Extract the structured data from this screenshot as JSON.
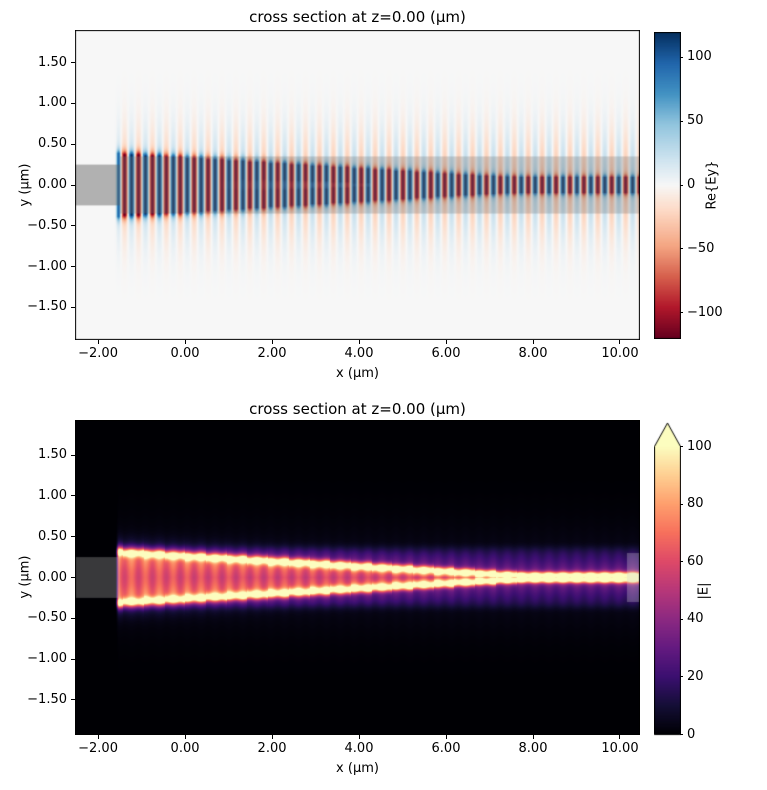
{
  "chart_data": [
    {
      "type": "heatmap",
      "title": "cross section at z=0.00 (μm)",
      "xlabel": "x (μm)",
      "ylabel": "y (μm)",
      "xlim": [
        -2.53,
        10.46
      ],
      "ylim": [
        -1.9,
        1.9
      ],
      "xticks": [
        -2,
        0,
        2,
        4,
        6,
        8,
        10
      ],
      "xtick_labels": [
        "−2.00",
        "0.00",
        "2.00",
        "4.00",
        "6.00",
        "8.00",
        "10.00"
      ],
      "yticks": [
        1.5,
        1.0,
        0.5,
        0.0,
        -0.5,
        -1.0,
        -1.5
      ],
      "ytick_labels": [
        "1.50",
        "1.00",
        "0.50",
        "0.00",
        "−0.50",
        "−1.00",
        "−1.50"
      ],
      "grid": false,
      "legend": false,
      "colormap": "RdBu",
      "colorbar": {
        "label": "Re{Ey}",
        "vmin": -119,
        "vmax": 119,
        "ticks": [
          100,
          50,
          0,
          -50,
          -100
        ],
        "tick_labels": [
          "100",
          "50",
          "0",
          "−50",
          "−100"
        ],
        "extend": "neither"
      },
      "field": {
        "description": "Re{Ey} of a guided mode launched at x=-1.55 propagating through an inverse taper: alternating red/blue half-period lobes along x, concentrated on the two taper edges which converge to a single center row past the taper tip, with faint vertical radiation bands above/below",
        "period_um": 0.32,
        "source_x": -1.55,
        "input_end_x": -1.5,
        "taper_tip_x": 7.7,
        "edge_half_start": 0.31,
        "edge_half_end": 0.02,
        "grid_quant": 0.015
      },
      "structures": [
        {
          "name": "input-waveguide-overlay",
          "x0": -2.53,
          "x1": -1.5,
          "y0": -0.25,
          "y1": 0.25,
          "fill": "rgba(90,90,90,0.45)"
        },
        {
          "name": "slab-overlay",
          "x0": -1.5,
          "x1": 10.46,
          "y0": -0.35,
          "y1": 0.35,
          "fill": "rgba(120,120,120,0.32)"
        }
      ]
    },
    {
      "type": "heatmap",
      "title": "cross section at z=0.00 (μm)",
      "xlabel": "x (μm)",
      "ylabel": "y (μm)",
      "xlim": [
        -2.53,
        10.46
      ],
      "ylim": [
        -1.93,
        1.93
      ],
      "xticks": [
        -2,
        0,
        2,
        4,
        6,
        8,
        10
      ],
      "xtick_labels": [
        "−2.00",
        "0.00",
        "2.00",
        "4.00",
        "6.00",
        "8.00",
        "10.00"
      ],
      "yticks": [
        1.5,
        1.0,
        0.5,
        0.0,
        -0.5,
        -1.0,
        -1.5
      ],
      "ytick_labels": [
        "1.50",
        "1.00",
        "0.50",
        "0.00",
        "−0.50",
        "−1.00",
        "−1.50"
      ],
      "grid": false,
      "legend": false,
      "colormap": "magma",
      "colorbar": {
        "label": "|E|",
        "vmin": 0,
        "vmax": 100,
        "ticks": [
          100,
          80,
          60,
          40,
          20,
          0
        ],
        "tick_labels": [
          "100",
          "80",
          "60",
          "40",
          "20",
          "0"
        ],
        "extend": "max"
      },
      "field": {
        "description": "|E| magnitude on black background: dim purple slab band |y|<0.35, bright pink interior inside the taper, very bright yellow-white lines along the two taper edges converging to a point near x=7.7 then continuing as a single bright center line, subtle vertical standing-wave striping",
        "period_um": 0.32,
        "source_x": -1.55,
        "input_end_x": -1.5,
        "taper_tip_x": 7.7,
        "edge_half_start": 0.31,
        "edge_half_end": 0.02,
        "grid_quant": 0.015
      },
      "structures": [
        {
          "name": "input-waveguide-overlay",
          "x0": -2.53,
          "x1": -1.5,
          "y0": -0.25,
          "y1": 0.25,
          "fill": "rgba(210,210,210,0.27)"
        },
        {
          "name": "monitor-overlay",
          "x0": 10.16,
          "x1": 10.46,
          "y0": -0.3,
          "y1": 0.3,
          "fill": "rgba(210,210,210,0.3)"
        }
      ]
    }
  ]
}
